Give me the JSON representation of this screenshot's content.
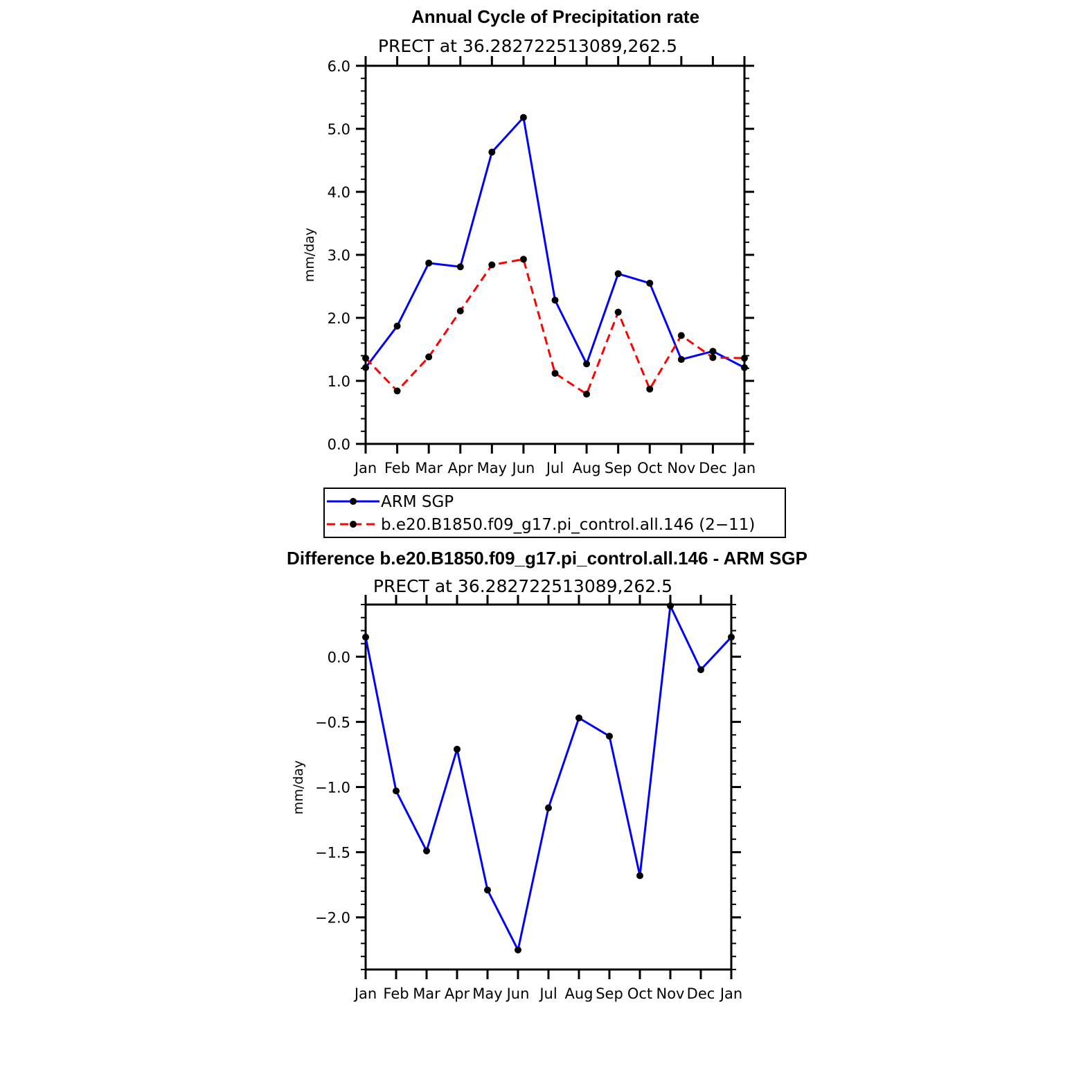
{
  "chart_data": [
    {
      "id": "top",
      "type": "line",
      "title": "Annual Cycle of Precipitation rate",
      "subtitle": "PRECT at 36.282722513089,262.5",
      "xlabel": "",
      "ylabel": "mm/day",
      "categories": [
        "Jan",
        "Feb",
        "Mar",
        "Apr",
        "May",
        "Jun",
        "Jul",
        "Aug",
        "Sep",
        "Oct",
        "Nov",
        "Dec",
        "Jan"
      ],
      "ylim": [
        0,
        6
      ],
      "yticks": [
        0,
        1,
        2,
        3,
        4,
        5,
        6
      ],
      "ytick_labels": [
        "0.0",
        "1.0",
        "2.0",
        "3.0",
        "4.0",
        "5.0",
        "6.0"
      ],
      "series": [
        {
          "name": "ARM SGP",
          "color": "#0000ff",
          "dash": "solid",
          "values": [
            1.21,
            1.87,
            2.87,
            2.81,
            4.63,
            5.18,
            2.28,
            1.27,
            2.7,
            2.55,
            1.34,
            1.47,
            1.21
          ]
        },
        {
          "name": "b.e20.B1850.f09_g17.pi_control.all.146 (2−11)",
          "color": "#ff0000",
          "dash": "dashed",
          "values": [
            1.36,
            0.84,
            1.38,
            2.11,
            2.84,
            2.93,
            1.12,
            0.79,
            2.09,
            0.87,
            1.72,
            1.37,
            1.36
          ]
        }
      ],
      "legend": "below"
    },
    {
      "id": "bottom",
      "type": "line",
      "title": "Difference b.e20.B1850.f09_g17.pi_control.all.146 - ARM SGP",
      "subtitle": "PRECT at 36.282722513089,262.5",
      "xlabel": "",
      "ylabel": "mm/day",
      "categories": [
        "Jan",
        "Feb",
        "Mar",
        "Apr",
        "May",
        "Jun",
        "Jul",
        "Aug",
        "Sep",
        "Oct",
        "Nov",
        "Dec",
        "Jan"
      ],
      "ylim": [
        -2.4,
        0.4
      ],
      "yticks": [
        -2.0,
        -1.5,
        -1.0,
        -0.5,
        0.0
      ],
      "ytick_labels": [
        "−2.0",
        "−1.5",
        "−1.0",
        "−0.5",
        "0.0"
      ],
      "series": [
        {
          "name": "Difference",
          "color": "#0000ff",
          "dash": "solid",
          "values": [
            0.15,
            -1.03,
            -1.49,
            -0.71,
            -1.79,
            -2.25,
            -1.16,
            -0.47,
            -0.61,
            -1.68,
            0.39,
            -0.1,
            0.15
          ]
        }
      ]
    }
  ]
}
